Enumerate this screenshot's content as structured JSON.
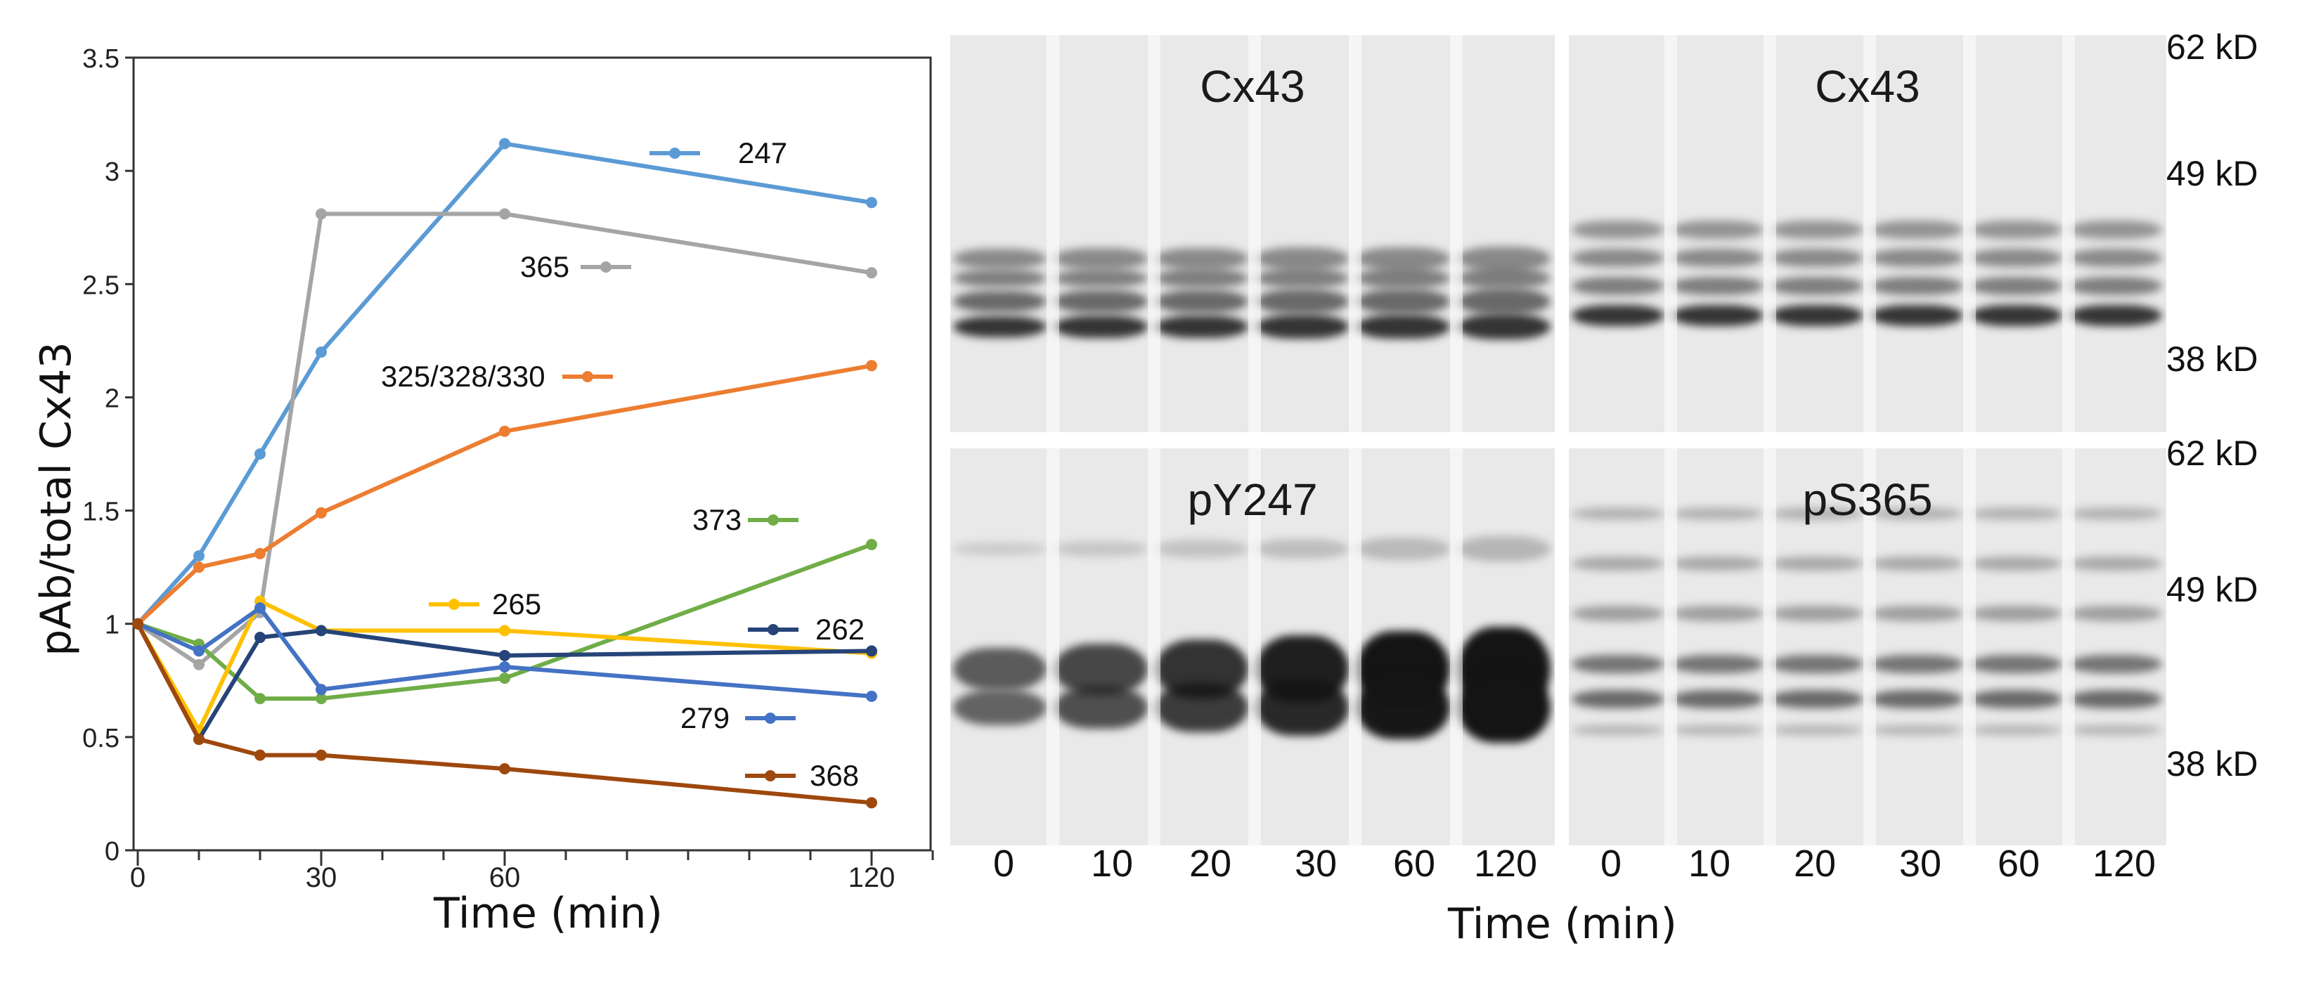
{
  "chart_data": {
    "type": "line",
    "title": "",
    "xlabel": "Time (min)",
    "ylabel": "pAb/total Cx43",
    "x": [
      0,
      10,
      20,
      30,
      60,
      120
    ],
    "xticks": [
      0,
      30,
      60,
      120
    ],
    "xtick_labels": [
      "0",
      "30",
      "60",
      "120"
    ],
    "yticks": [
      0,
      0.5,
      1,
      1.5,
      2,
      2.5,
      3,
      3.5
    ],
    "ytick_labels": [
      "0",
      "0.5",
      "1",
      "1.5",
      "2",
      "2.5",
      "3",
      "3.5"
    ],
    "xlim": [
      0,
      130
    ],
    "ylim": [
      0,
      3.5
    ],
    "grid": false,
    "series": [
      {
        "name": "247",
        "color": "#5b9bd5",
        "values": [
          1.0,
          1.3,
          1.75,
          2.2,
          3.12,
          2.86
        ]
      },
      {
        "name": "365",
        "color": "#a5a5a5",
        "values": [
          1.0,
          0.82,
          1.05,
          2.81,
          2.81,
          2.55
        ]
      },
      {
        "name": "325/328/330",
        "color": "#ed7d31",
        "values": [
          1.0,
          1.25,
          1.31,
          1.49,
          1.85,
          2.14
        ]
      },
      {
        "name": "373",
        "color": "#70ad47",
        "values": [
          1.0,
          0.91,
          0.67,
          0.67,
          0.76,
          1.35
        ]
      },
      {
        "name": "265",
        "color": "#ffc000",
        "values": [
          1.0,
          0.53,
          1.1,
          0.97,
          0.97,
          0.87
        ]
      },
      {
        "name": "262",
        "color": "#264478",
        "values": [
          1.0,
          0.49,
          0.94,
          0.97,
          0.86,
          0.88
        ]
      },
      {
        "name": "279",
        "color": "#4472c4",
        "values": [
          1.0,
          0.88,
          1.07,
          0.71,
          0.81,
          0.68
        ]
      },
      {
        "name": "368",
        "color": "#9e480e",
        "values": [
          1.0,
          0.49,
          0.42,
          0.42,
          0.36,
          0.21
        ]
      }
    ]
  },
  "blots": {
    "panels": [
      {
        "title": "Cx43"
      },
      {
        "title": "Cx43"
      },
      {
        "title": "pY247"
      },
      {
        "title": "pS365"
      }
    ],
    "markers_top": [
      "62 kD",
      "49 kD",
      "38 kD"
    ],
    "markers_bottom": [
      "62 kD",
      "49 kD",
      "38 kD"
    ],
    "lane_labels_left": [
      "0",
      "10",
      "20",
      "30",
      "60",
      "120"
    ],
    "lane_labels_right": [
      "0",
      "10",
      "20",
      "30",
      "60",
      "120"
    ],
    "xlabel": "Time (min)"
  }
}
